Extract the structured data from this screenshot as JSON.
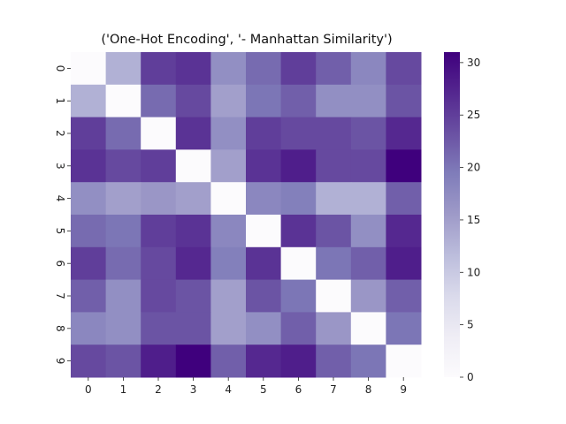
{
  "chart_data": {
    "type": "heatmap",
    "title": "('One-Hot Encoding', '- Manhattan Similarity')",
    "x_tick_labels": [
      "0",
      "1",
      "2",
      "3",
      "4",
      "5",
      "6",
      "7",
      "8",
      "9"
    ],
    "y_tick_labels": [
      "0",
      "1",
      "2",
      "3",
      "4",
      "5",
      "6",
      "7",
      "8",
      "9"
    ],
    "colorbar": {
      "min": 0,
      "max": 31,
      "ticks": [
        0,
        5,
        10,
        15,
        20,
        25,
        30
      ],
      "colormap": "Purples"
    },
    "values": [
      [
        0,
        13,
        25,
        26,
        17,
        21,
        25,
        22,
        18,
        24
      ],
      [
        13,
        0,
        21,
        24,
        15,
        20,
        22,
        17,
        17,
        23
      ],
      [
        25,
        21,
        0,
        26,
        17,
        25,
        24,
        24,
        23,
        27
      ],
      [
        26,
        24,
        25,
        0,
        15,
        26,
        28,
        24,
        24,
        31
      ],
      [
        17,
        15,
        16,
        15,
        0,
        18,
        19,
        13,
        13,
        22
      ],
      [
        21,
        20,
        25,
        26,
        18,
        0,
        26,
        23,
        17,
        27
      ],
      [
        25,
        21,
        24,
        27,
        19,
        26,
        0,
        20,
        22,
        28
      ],
      [
        22,
        17,
        24,
        23,
        15,
        23,
        20,
        0,
        16,
        22
      ],
      [
        18,
        17,
        23,
        23,
        15,
        17,
        22,
        16,
        0,
        20
      ],
      [
        24,
        23,
        28,
        31,
        22,
        27,
        28,
        22,
        20,
        0
      ]
    ]
  }
}
